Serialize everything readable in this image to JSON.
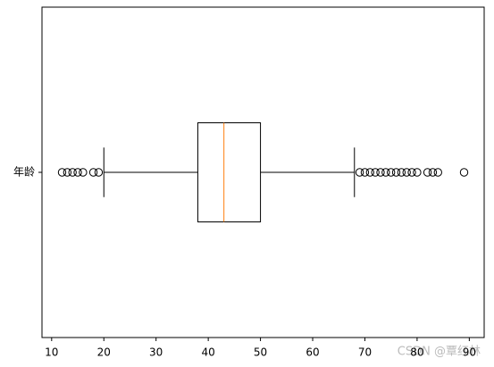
{
  "chart_data": {
    "type": "box",
    "orientation": "horizontal",
    "categories": [
      "年龄"
    ],
    "boxes": [
      {
        "whislo": 20,
        "q1": 38,
        "med": 43,
        "q3": 50,
        "whishi": 68,
        "fliers": [
          12,
          13,
          14,
          15,
          16,
          18,
          19,
          69,
          70,
          71,
          72,
          73,
          74,
          75,
          76,
          77,
          78,
          79,
          80,
          82,
          83,
          84,
          89
        ]
      }
    ],
    "color": "#000000",
    "median_color": "#ff7f0e",
    "xlim": [
      8.15,
      92.85
    ],
    "xticks": [
      10,
      20,
      30,
      40,
      50,
      60,
      70,
      80,
      90
    ]
  },
  "watermark": "CSDN @覃红林"
}
